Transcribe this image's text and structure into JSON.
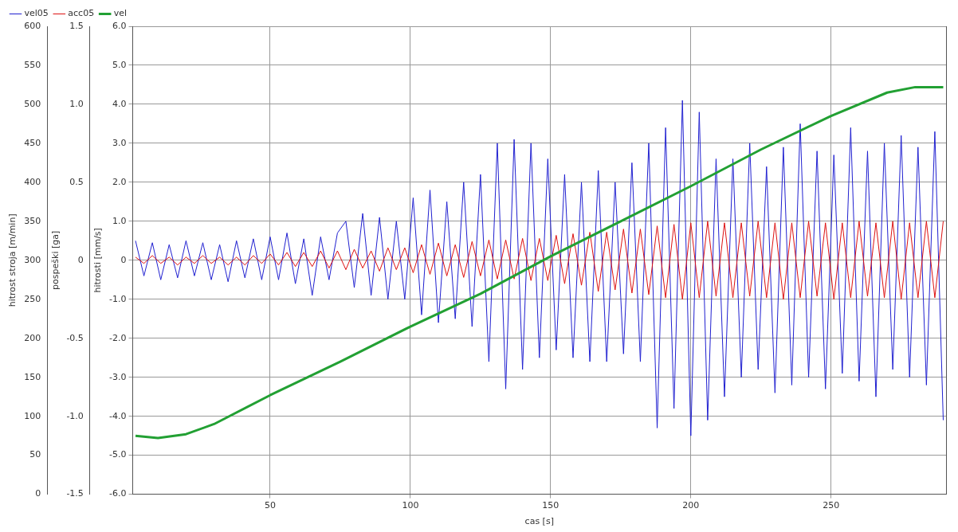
{
  "chart_data": {
    "type": "line",
    "xlabel": "cas [s]",
    "ylabel": "hitrosti [mm/s]",
    "y2label": "hitrost stroja [m/min]",
    "y3label": "pospeški [ga]",
    "x": [
      2,
      5,
      8,
      11,
      14,
      17,
      20,
      23,
      26,
      29,
      32,
      35,
      38,
      41,
      44,
      47,
      50,
      53,
      56,
      59,
      62,
      65,
      68,
      71,
      74,
      77,
      80,
      83,
      86,
      89,
      92,
      95,
      98,
      101,
      104,
      107,
      110,
      113,
      116,
      119,
      122,
      125,
      128,
      131,
      134,
      137,
      140,
      143,
      146,
      149,
      152,
      155,
      158,
      161,
      164,
      167,
      170,
      173,
      176,
      179,
      182,
      185,
      188,
      191,
      194,
      197,
      200,
      203,
      206,
      209,
      212,
      215,
      218,
      221,
      224,
      227,
      230,
      233,
      236,
      239,
      242,
      245,
      248,
      251,
      254,
      257,
      260,
      263,
      266,
      269,
      272,
      275,
      278,
      281,
      284,
      287,
      290
    ],
    "series": [
      {
        "name": "vel05",
        "color": "#2020d0",
        "values": [
          0.5,
          -0.4,
          0.45,
          -0.5,
          0.4,
          -0.45,
          0.5,
          -0.4,
          0.45,
          -0.5,
          0.4,
          -0.55,
          0.5,
          -0.45,
          0.55,
          -0.5,
          0.6,
          -0.5,
          0.7,
          -0.6,
          0.55,
          -0.9,
          0.6,
          -0.5,
          0.7,
          1.0,
          -0.7,
          1.2,
          -0.9,
          1.1,
          -1.0,
          1.0,
          -1.0,
          1.6,
          -1.4,
          1.8,
          -1.6,
          1.5,
          -1.5,
          2.0,
          -1.7,
          2.2,
          -2.6,
          3.0,
          -3.3,
          3.1,
          -2.8,
          3.0,
          -2.5,
          2.6,
          -2.3,
          2.2,
          -2.5,
          2.0,
          -2.6,
          2.3,
          -2.6,
          2.0,
          -2.4,
          2.5,
          -2.6,
          3.0,
          -4.3,
          3.4,
          -3.8,
          4.1,
          -4.5,
          3.8,
          -4.1,
          2.6,
          -3.5,
          2.6,
          -3.0,
          3.0,
          -2.8,
          2.4,
          -3.4,
          2.9,
          -3.2,
          3.5,
          -3.0,
          2.8,
          -3.3,
          2.7,
          -2.9,
          3.4,
          -3.1,
          2.8,
          -3.5,
          3.0,
          -2.8,
          3.2,
          -3.0,
          2.9,
          -3.2,
          3.3,
          -4.1
        ]
      },
      {
        "name": "acc05",
        "color": "#dd1111",
        "axis": "y3",
        "values": [
          0.02,
          -0.02,
          0.03,
          -0.02,
          0.02,
          -0.03,
          0.02,
          -0.02,
          0.03,
          -0.02,
          0.02,
          -0.03,
          0.02,
          -0.03,
          0.03,
          -0.02,
          0.04,
          -0.03,
          0.05,
          -0.04,
          0.05,
          -0.04,
          0.06,
          -0.05,
          0.06,
          -0.06,
          0.07,
          -0.05,
          0.06,
          -0.07,
          0.08,
          -0.06,
          0.08,
          -0.08,
          0.1,
          -0.09,
          0.11,
          -0.1,
          0.1,
          -0.11,
          0.12,
          -0.1,
          0.13,
          -0.12,
          0.13,
          -0.12,
          0.14,
          -0.13,
          0.14,
          -0.13,
          0.16,
          -0.15,
          0.17,
          -0.16,
          0.18,
          -0.2,
          0.18,
          -0.19,
          0.2,
          -0.21,
          0.2,
          -0.22,
          0.22,
          -0.24,
          0.23,
          -0.25,
          0.24,
          -0.24,
          0.25,
          -0.23,
          0.24,
          -0.24,
          0.24,
          -0.23,
          0.25,
          -0.24,
          0.24,
          -0.25,
          0.24,
          -0.24,
          0.25,
          -0.23,
          0.24,
          -0.25,
          0.24,
          -0.24,
          0.25,
          -0.23,
          0.24,
          -0.24,
          0.25,
          -0.25,
          0.24,
          -0.24,
          0.25,
          -0.24,
          0.25
        ]
      },
      {
        "name": "vel",
        "color": "#22a033",
        "axis": "y2",
        "x": [
          2,
          10,
          20,
          30,
          50,
          75,
          100,
          125,
          150,
          175,
          200,
          225,
          250,
          270,
          280,
          290
        ],
        "values": [
          75,
          72,
          77,
          90,
          127,
          170,
          215,
          257,
          305,
          350,
          395,
          442,
          485,
          515,
          522,
          522
        ]
      }
    ],
    "xlim": [
      1,
      291
    ],
    "xticks": [
      50,
      100,
      150,
      200,
      250
    ],
    "ylim": [
      -6,
      6
    ],
    "yticks": [
      {
        "value": -6,
        "label": "-6.0"
      },
      {
        "value": -5,
        "label": "-5.0"
      },
      {
        "value": -4,
        "label": "-4.0"
      },
      {
        "value": -3,
        "label": "-3.0"
      },
      {
        "value": -2,
        "label": "-2.0"
      },
      {
        "value": -1,
        "label": "-1.0"
      },
      0,
      {
        "value": 1,
        "label": "1.0"
      },
      {
        "value": 2,
        "label": "2.0"
      },
      {
        "value": 3,
        "label": "3.0"
      },
      {
        "value": 4,
        "label": "4.0"
      },
      {
        "value": 5,
        "label": "5.0"
      },
      {
        "value": 6,
        "label": "6.0"
      }
    ],
    "y3lim": [
      -1.5,
      1.5
    ],
    "y3ticks": [
      -1.5,
      {
        "value": -1,
        "label": "-1.0"
      },
      -0.5,
      0,
      0.5,
      {
        "value": 1,
        "label": "1.0"
      },
      1.5
    ],
    "y2lim": [
      0,
      600
    ],
    "y2ticks": [
      0,
      50,
      100,
      150,
      200,
      250,
      300,
      350,
      400,
      450,
      500,
      550,
      600
    ],
    "grid": true,
    "legend": "top left",
    "marker": "none",
    "line_style": "solid"
  }
}
